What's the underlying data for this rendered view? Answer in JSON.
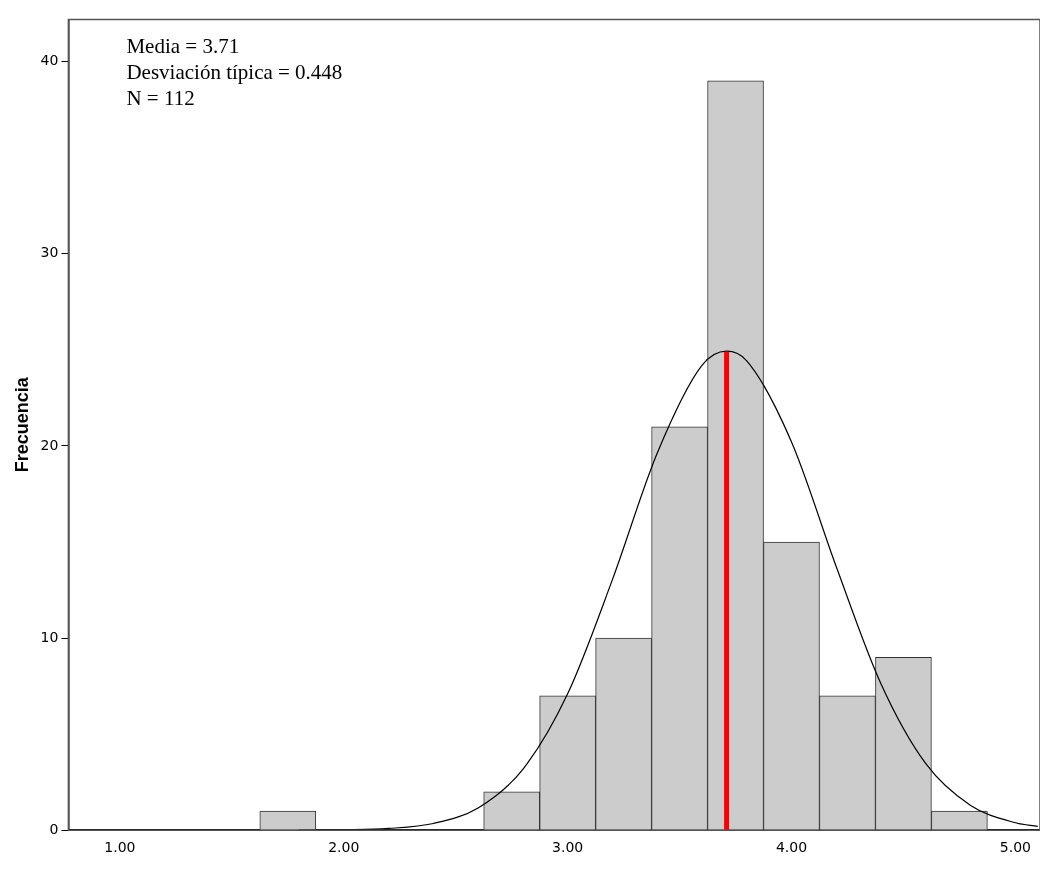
{
  "chart_data": {
    "type": "histogram",
    "ylabel": "Frecuencia",
    "annotations": [
      "Media = 3.71",
      "Desviación típica = 0.448",
      "N = 112"
    ],
    "bins": [
      1.625,
      1.875,
      2.125,
      2.375,
      2.625,
      2.875,
      3.125,
      3.375,
      3.625,
      3.875,
      4.125,
      4.375,
      4.625,
      4.875
    ],
    "values": [
      1,
      0,
      0,
      0,
      2,
      7,
      10,
      21,
      39,
      15,
      7,
      9,
      1
    ],
    "color": "#cccccc",
    "series": [
      {
        "type": "line",
        "color": "#000000",
        "x": [
          1.8,
          2.0,
          2.2,
          2.4,
          2.6,
          2.8,
          3.0,
          3.2,
          3.4,
          3.6,
          3.71,
          3.8,
          4.0,
          4.2,
          4.4,
          4.6,
          4.8,
          5.0,
          5.1
        ],
        "values": [
          0,
          0.02,
          0.09,
          0.35,
          1.16,
          3.17,
          7.1,
          13.04,
          19.62,
          24.19,
          24.93,
          24.43,
          20.21,
          13.71,
          7.61,
          3.46,
          1.29,
          0.39,
          0.2
        ]
      },
      {
        "type": "line",
        "color": "#ff0000",
        "x": [
          3.71,
          3.71
        ],
        "values": [
          0,
          24.9
        ]
      }
    ],
    "xlim": [
      0.77,
      5.11
    ],
    "xticks": [
      {
        "value": 1,
        "label": "1.00"
      },
      {
        "value": 2,
        "label": "2.00"
      },
      {
        "value": 3,
        "label": "3.00"
      },
      {
        "value": 4,
        "label": "4.00"
      },
      {
        "value": 5,
        "label": "5.00"
      }
    ],
    "ylim": [
      0,
      42.2
    ],
    "yticks": [
      0,
      10,
      20,
      30,
      40
    ],
    "grid": false,
    "legend": false
  }
}
